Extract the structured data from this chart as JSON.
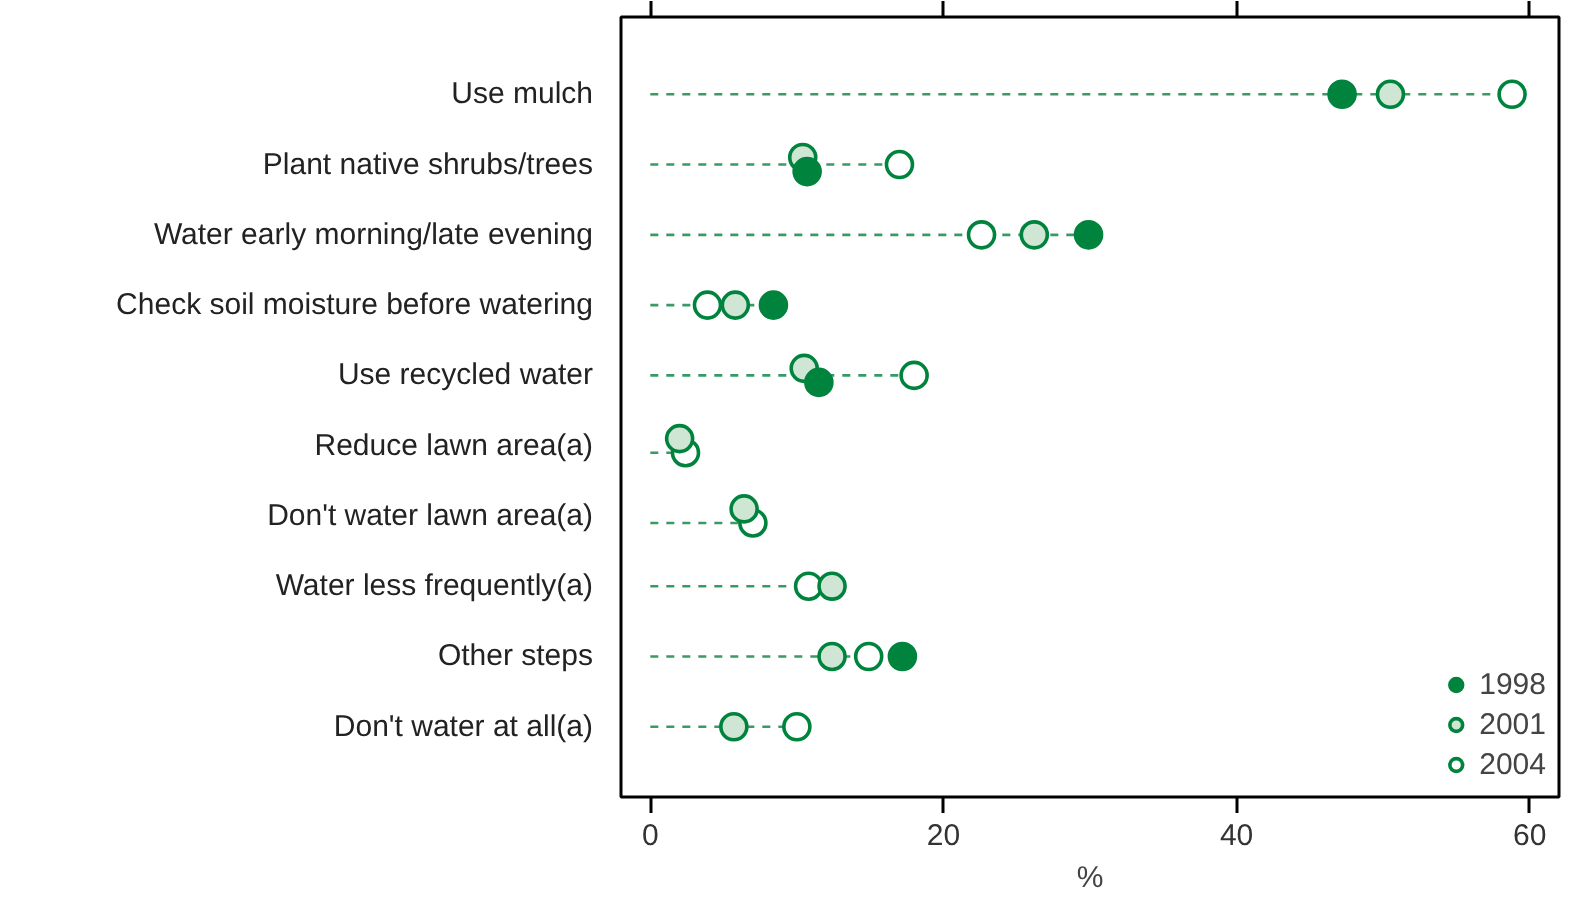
{
  "chart_data": {
    "type": "lollipop",
    "orientation": "horizontal",
    "xlabel": "%",
    "categories": [
      "Use mulch",
      "Plant native shrubs/trees",
      "Water early morning/late evening",
      "Check soil moisture before watering",
      "Use recycled water",
      "Reduce lawn area(a)",
      "Don't water lawn area(a)",
      "Water less frequently(a)",
      "Other steps",
      "Don't water at all(a)"
    ],
    "series": [
      {
        "name": "1998",
        "color": "#00843d",
        "values": [
          47.2,
          10.7,
          29.9,
          8.4,
          11.5,
          null,
          null,
          null,
          17.2,
          null
        ]
      },
      {
        "name": "2001",
        "color": "#cfe6d5",
        "values": [
          50.5,
          10.4,
          26.2,
          5.8,
          10.5,
          2.0,
          6.4,
          12.4,
          12.4,
          5.7
        ]
      },
      {
        "name": "2004",
        "color": "#ffffff",
        "values": [
          58.8,
          17.0,
          22.6,
          3.9,
          18.0,
          2.4,
          7.0,
          10.8,
          14.9,
          10.0
        ]
      }
    ],
    "xlim": [
      -2,
      62
    ],
    "xticks": [
      0,
      20,
      40,
      60
    ],
    "grid": false,
    "legend": "bottom right",
    "marker": "circle",
    "line_style": "dashed"
  }
}
